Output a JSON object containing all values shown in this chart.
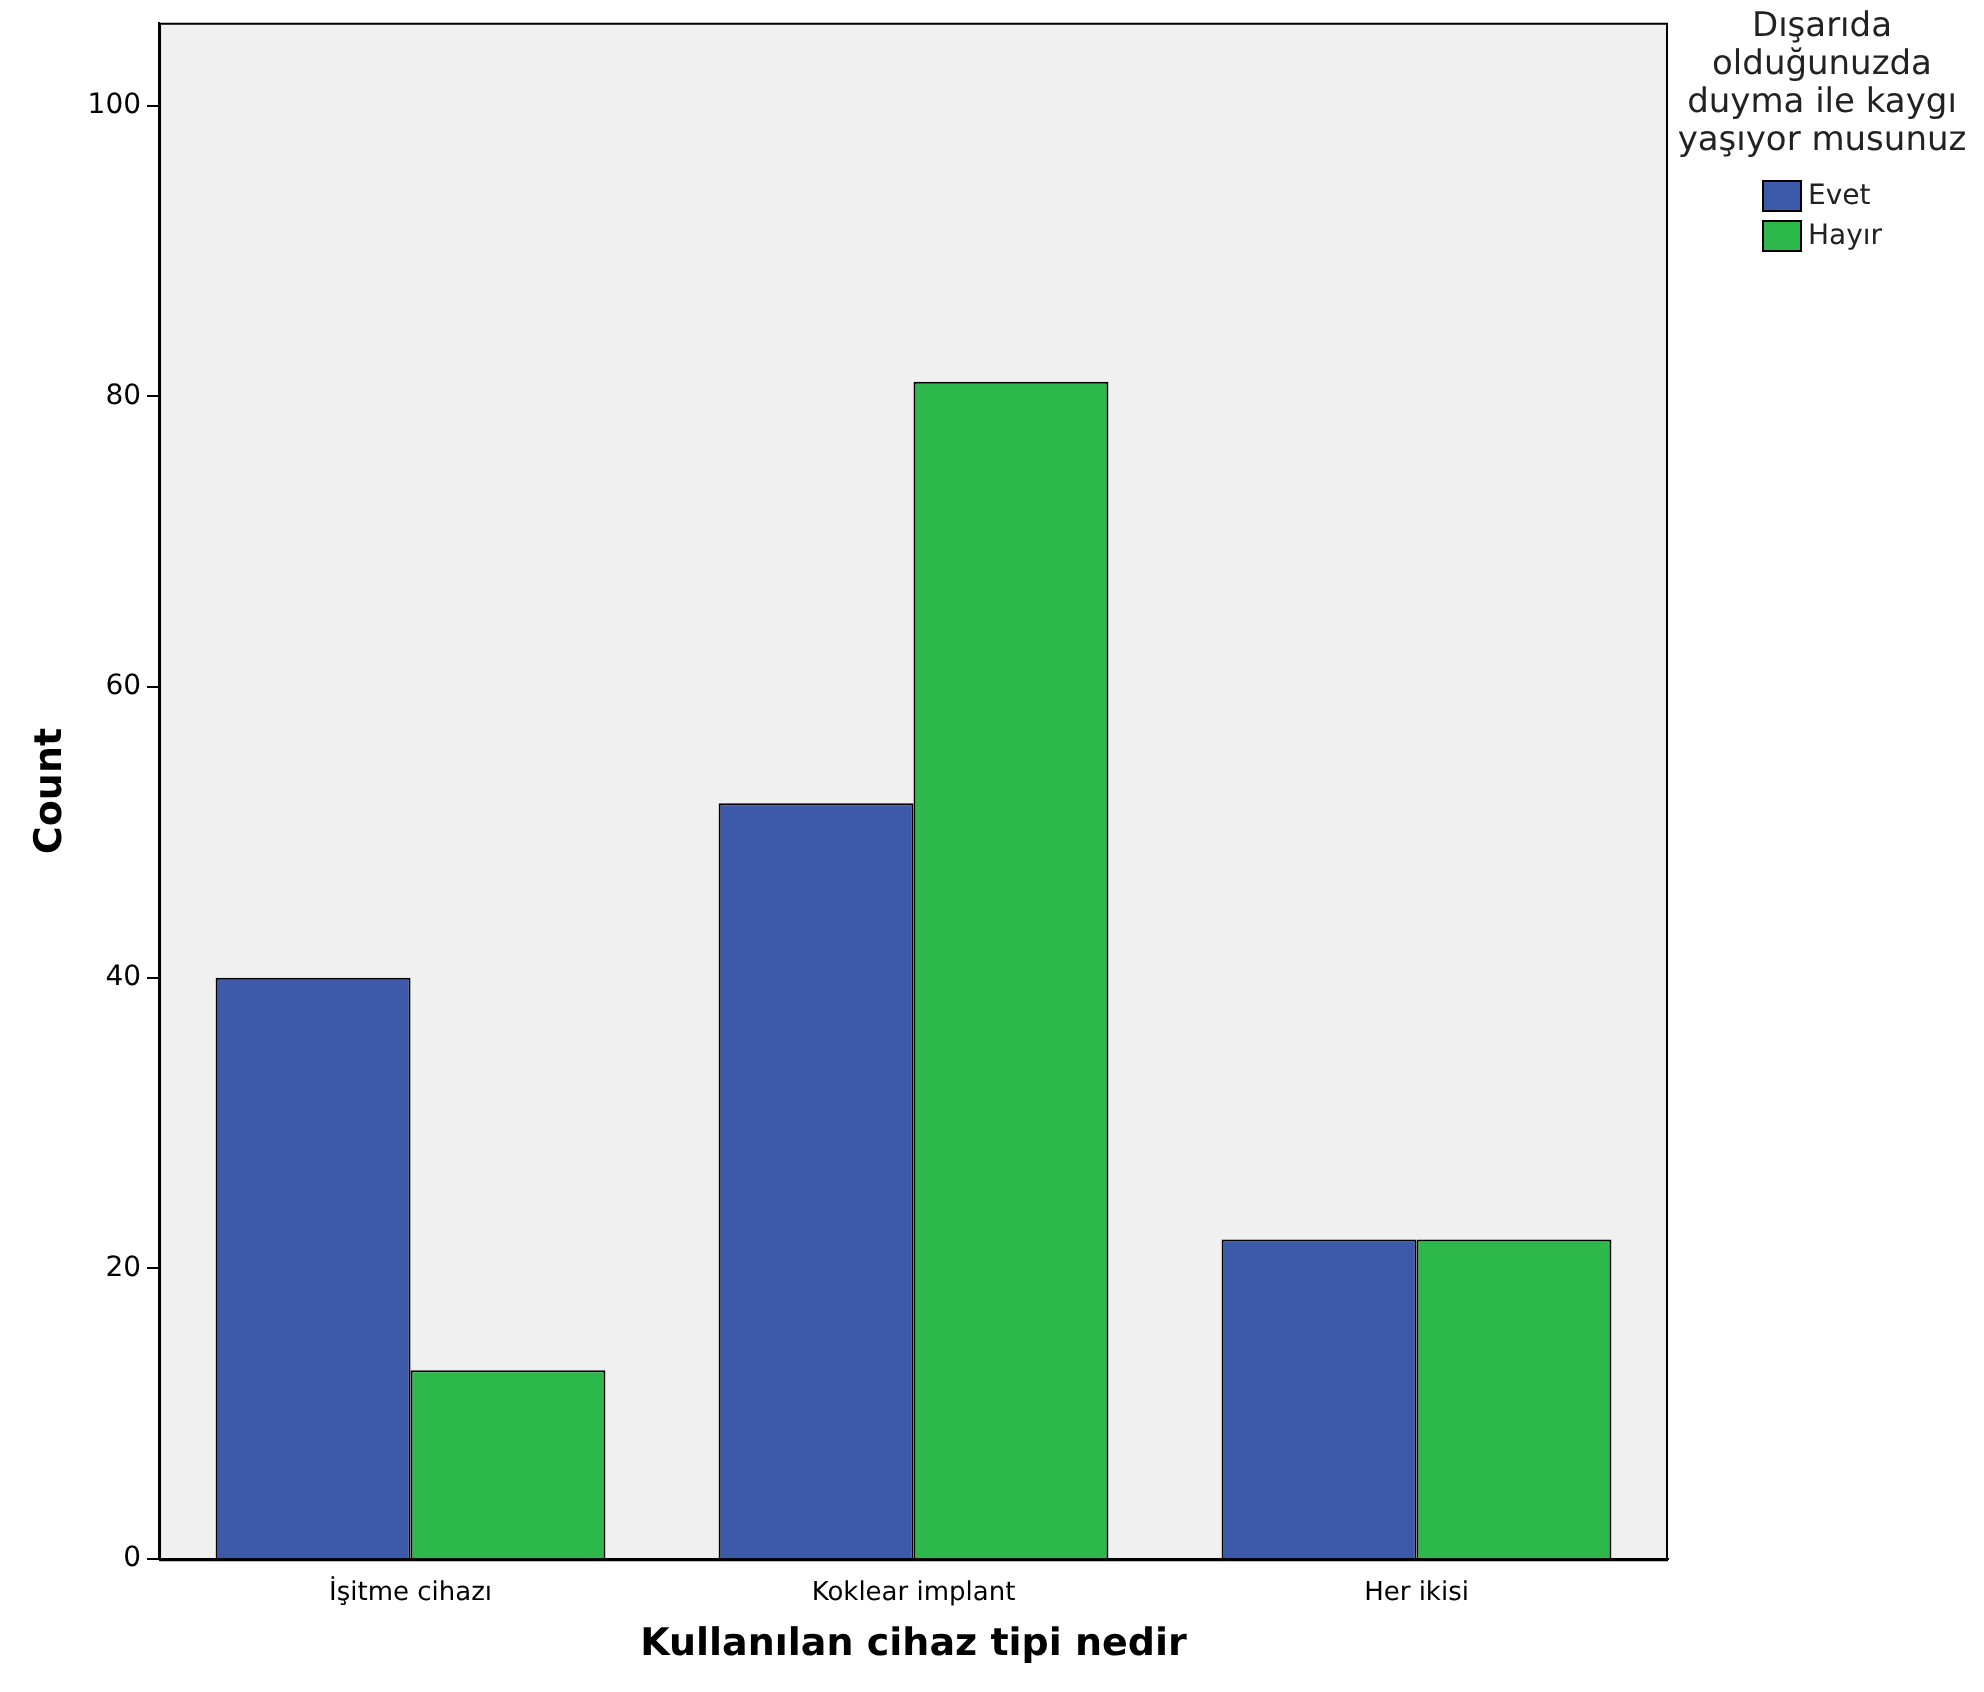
{
  "chart_data": {
    "type": "bar",
    "xlabel": "Kullanılan cihaz tipi nedir",
    "ylabel": "Count",
    "legend_title": "Dışarıda olduğunuzda duyma ile kaygı yaşıyor musunuz",
    "categories": [
      "İşitme cihazı",
      "Koklear implant",
      "Her ikisi"
    ],
    "series": [
      {
        "name": "Evet",
        "color": "#3c59aa",
        "values": [
          40,
          52,
          22
        ]
      },
      {
        "name": "Hayır",
        "color": "#2db84b",
        "values": [
          13,
          81,
          22
        ]
      }
    ],
    "ylim": [
      0,
      105.7
    ],
    "yticks": [
      0,
      20,
      40,
      60,
      80,
      100
    ],
    "grid": false,
    "legend": "right"
  }
}
